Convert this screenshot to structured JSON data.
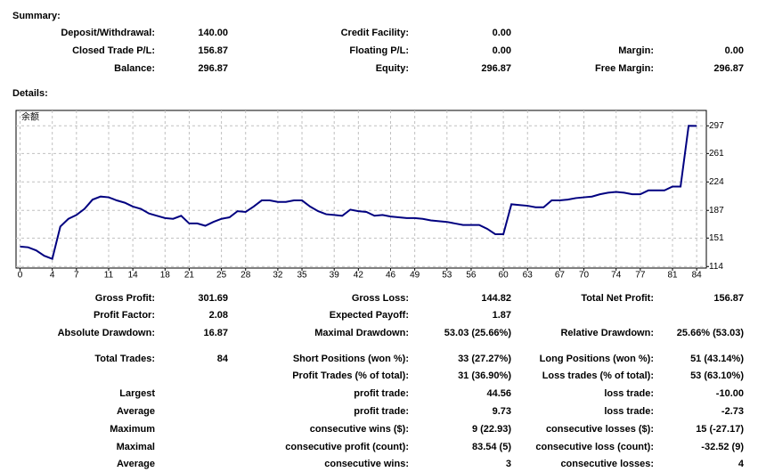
{
  "summary": {
    "heading": "Summary:",
    "rows": [
      {
        "left": {
          "label": "Deposit/Withdrawal:",
          "value": "140.00"
        },
        "middle": {
          "label": "Credit Facility:",
          "value": "0.00"
        }
      },
      {
        "left": {
          "label": "Closed Trade P/L:",
          "value": "156.87"
        },
        "middle": {
          "label": "Floating P/L:",
          "value": "0.00"
        },
        "right": {
          "label": "Margin:",
          "value": "0.00"
        }
      },
      {
        "left": {
          "label": "Balance:",
          "value": "296.87"
        },
        "middle": {
          "label": "Equity:",
          "value": "296.87"
        },
        "right": {
          "label": "Free Margin:",
          "value": "296.87"
        }
      }
    ]
  },
  "details": {
    "heading": "Details:",
    "rows": [
      {
        "left": {
          "label": "Gross Profit:",
          "value": "301.69"
        },
        "middle": {
          "label": "Gross Loss:",
          "value": "144.82"
        },
        "right": {
          "label": "Total Net Profit:",
          "value": "156.87"
        }
      },
      {
        "left": {
          "label": "Profit Factor:",
          "value": "2.08"
        },
        "middle": {
          "label": "Expected Payoff:",
          "value": "1.87"
        }
      },
      {
        "left": {
          "label": "Absolute Drawdown:",
          "value": "16.87"
        },
        "middle": {
          "label": "Maximal Drawdown:",
          "value": "53.03 (25.66%)"
        },
        "right": {
          "label": "Relative Drawdown:",
          "value": "25.66% (53.03)"
        }
      },
      {
        "left": {
          "label": "Total Trades:",
          "value": "84"
        },
        "middle": {
          "label": "Short Positions (won %):",
          "value": "33 (27.27%)"
        },
        "right": {
          "label": "Long Positions (won %):",
          "value": "51 (43.14%)"
        }
      },
      {
        "middle": {
          "label": "Profit Trades (% of total):",
          "value": "31 (36.90%)"
        },
        "right": {
          "label": "Loss trades (% of total):",
          "value": "53 (63.10%)"
        }
      },
      {
        "left": {
          "label": "Largest"
        },
        "middle": {
          "label": "profit trade:",
          "value": "44.56"
        },
        "right": {
          "label": "loss trade:",
          "value": "-10.00"
        }
      },
      {
        "left": {
          "label": "Average"
        },
        "middle": {
          "label": "profit trade:",
          "value": "9.73"
        },
        "right": {
          "label": "loss trade:",
          "value": "-2.73"
        }
      },
      {
        "left": {
          "label": "Maximum"
        },
        "middle": {
          "label": "consecutive wins ($):",
          "value": "9 (22.93)"
        },
        "right": {
          "label": "consecutive losses ($):",
          "value": "15 (-27.17)"
        }
      },
      {
        "left": {
          "label": "Maximal"
        },
        "middle": {
          "label": "consecutive profit (count):",
          "value": "83.54 (5)"
        },
        "right": {
          "label": "consecutive loss (count):",
          "value": "-32.52 (9)"
        }
      },
      {
        "left": {
          "label": "Average"
        },
        "middle": {
          "label": "consecutive wins:",
          "value": "3"
        },
        "right": {
          "label": "consecutive losses:",
          "value": "4"
        }
      }
    ]
  },
  "chart_data": {
    "type": "line",
    "x": [
      0,
      1,
      2,
      3,
      4,
      5,
      6,
      7,
      8,
      9,
      10,
      11,
      12,
      13,
      14,
      15,
      16,
      17,
      18,
      19,
      20,
      21,
      22,
      23,
      24,
      25,
      26,
      27,
      28,
      29,
      30,
      31,
      32,
      33,
      34,
      35,
      36,
      37,
      38,
      39,
      40,
      41,
      42,
      43,
      44,
      45,
      46,
      47,
      48,
      49,
      50,
      51,
      52,
      53,
      54,
      55,
      56,
      57,
      58,
      59,
      60,
      61,
      62,
      63,
      64,
      65,
      66,
      67,
      68,
      69,
      70,
      71,
      72,
      73,
      74,
      75,
      76,
      77,
      78,
      79,
      80,
      81,
      82,
      83,
      84
    ],
    "series": [
      {
        "name": "余额",
        "color": "#000080",
        "values": [
          140,
          139,
          135,
          128,
          124,
          166,
          176,
          181,
          189,
          201,
          205,
          204,
          200,
          197,
          192,
          189,
          183,
          180,
          177,
          176,
          180,
          170,
          170,
          167,
          172,
          176,
          178,
          186,
          185,
          192,
          200,
          200,
          198,
          198,
          200,
          200,
          192,
          186,
          182,
          181,
          180,
          188,
          186,
          185,
          180,
          181,
          179,
          178,
          177,
          177,
          176,
          174,
          173,
          172,
          170,
          168,
          168,
          168,
          163,
          156,
          156,
          195,
          194,
          193,
          191,
          191,
          200,
          200,
          201,
          203,
          204,
          205,
          208,
          210,
          211,
          210,
          208,
          208,
          213,
          213,
          213,
          218,
          218,
          297,
          296.87
        ]
      }
    ],
    "xlim": [
      -0.5,
      85.2
    ],
    "ylim": [
      112,
      317
    ],
    "xticks": [
      0,
      4,
      7,
      11,
      14,
      18,
      21,
      25,
      28,
      32,
      35,
      39,
      42,
      46,
      49,
      53,
      56,
      60,
      63,
      67,
      70,
      74,
      77,
      81,
      84
    ],
    "yticks": [
      114,
      151,
      187,
      224,
      261,
      297
    ],
    "grid": true
  }
}
